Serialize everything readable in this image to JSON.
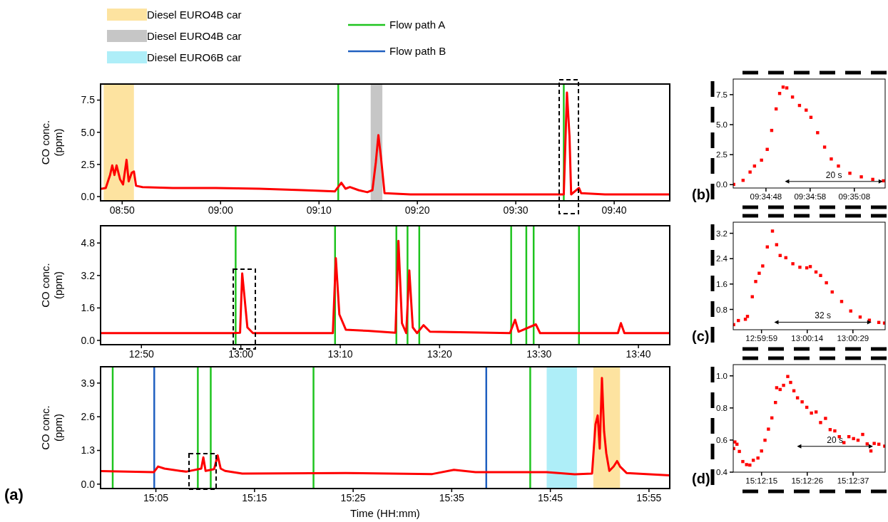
{
  "chart_data": [
    {
      "type": "line",
      "ylabel": "CO conc. (ppm)",
      "color": "#ff0000",
      "legend": "top",
      "x": [
        8.7967,
        8.8055,
        8.8128,
        8.8165,
        8.8202,
        8.8238,
        8.8297,
        8.8348,
        8.8407,
        8.8443,
        8.8495,
        8.8532,
        8.8568,
        8.8678,
        8.919,
        8.9922,
        9.0653,
        9.1385,
        9.1935,
        9.2045,
        9.2117,
        9.219,
        9.2337,
        9.2485,
        9.2572,
        9.263,
        9.2673,
        9.2717,
        9.2777,
        9.3217,
        9.4313,
        9.5703,
        9.5813,
        9.5867,
        9.591,
        9.5938,
        9.607,
        9.6107,
        9.651,
        9.7608
      ],
      "values": [
        0.6,
        0.67,
        1.68,
        2.42,
        1.68,
        2.42,
        1.35,
        0.94,
        2.86,
        1.18,
        1.85,
        1.95,
        0.84,
        0.74,
        0.67,
        0.67,
        0.61,
        0.5,
        0.4,
        1.08,
        0.61,
        0.74,
        0.5,
        0.34,
        0.5,
        2.69,
        4.78,
        3.03,
        0.27,
        0.17,
        0.17,
        0.17,
        0.17,
        8.08,
        4.71,
        0.17,
        0.67,
        0.27,
        0.17,
        0.17
      ],
      "xlim": [
        8.7967,
        9.7608
      ],
      "xticks": [
        {
          "value": 8.8333,
          "label": "08:50"
        },
        {
          "value": 9.0,
          "label": "09:00"
        },
        {
          "value": 9.1667,
          "label": "09:10"
        },
        {
          "value": 9.3333,
          "label": "09:20"
        },
        {
          "value": 9.5,
          "label": "09:30"
        },
        {
          "value": 9.6667,
          "label": "09:40"
        }
      ],
      "ylim": [
        -0.33,
        8.75
      ],
      "yticks": [
        {
          "value": 0,
          "label": "0.0"
        },
        2.5,
        {
          "value": 5,
          "label": "5.0"
        },
        7.5
      ],
      "bands": [
        {
          "axis": "x",
          "from": 8.802,
          "to": 8.8532,
          "label": "Diesel EURO4B car",
          "color": "#fbc741"
        },
        {
          "axis": "x",
          "from": 9.2542,
          "to": 9.274,
          "label": "Diesel EURO4B car",
          "color": "#8d8d8d"
        }
      ],
      "ref_lines": [
        {
          "axis": "x",
          "value": 9.1993,
          "label": "Flow path A",
          "color": "#1fc41f"
        },
        {
          "axis": "x",
          "value": 9.5813,
          "color": "#1fc41f"
        }
      ]
    },
    {
      "type": "line",
      "ylabel": "CO conc. (ppm)",
      "color": "#ff0000",
      "x": [
        12.7648,
        12.8863,
        12.9878,
        12.9987,
        13.0023,
        13.0058,
        13.011,
        13.0203,
        13.1543,
        13.1593,
        13.1652,
        13.176,
        13.2123,
        13.2593,
        13.2643,
        13.2702,
        13.2773,
        13.2825,
        13.2883,
        13.2955,
        13.3063,
        13.3172,
        13.4513,
        13.4598,
        13.4657,
        13.4947,
        13.5018,
        13.6323,
        13.6373,
        13.6432,
        13.7192
      ],
      "values": [
        0.36,
        0.36,
        0.36,
        0.38,
        3.3,
        2.24,
        0.64,
        0.36,
        0.36,
        4.05,
        1.28,
        0.53,
        0.47,
        0.38,
        4.9,
        0.85,
        0.36,
        3.45,
        0.64,
        0.36,
        0.75,
        0.43,
        0.36,
        1.02,
        0.43,
        0.79,
        0.36,
        0.36,
        0.85,
        0.36,
        0.36
      ],
      "xlim": [
        12.7648,
        13.7192
      ],
      "xticks": [
        {
          "value": 12.8333,
          "label": "12:50"
        },
        {
          "value": 13.0,
          "label": "13:00"
        },
        {
          "value": 13.1667,
          "label": "13:10"
        },
        {
          "value": 13.3333,
          "label": "13:20"
        },
        {
          "value": 13.5,
          "label": "13:30"
        },
        {
          "value": 13.6667,
          "label": "13:40"
        }
      ],
      "ylim": [
        -0.21,
        5.65
      ],
      "yticks": [
        {
          "value": 0,
          "label": "0.0"
        },
        1.6,
        3.2,
        4.8
      ],
      "ref_lines": [
        {
          "axis": "x",
          "value": 12.9913,
          "color": "#1fc41f"
        },
        {
          "axis": "x",
          "value": 13.158,
          "color": "#1fc41f"
        },
        {
          "axis": "x",
          "value": 13.2608,
          "color": "#1fc41f"
        },
        {
          "axis": "x",
          "value": 13.2795,
          "color": "#1fc41f"
        },
        {
          "axis": "x",
          "value": 13.2992,
          "color": "#1fc41f"
        },
        {
          "axis": "x",
          "value": 13.4533,
          "color": "#1fc41f"
        },
        {
          "axis": "x",
          "value": 13.4787,
          "color": "#1fc41f"
        },
        {
          "axis": "x",
          "value": 13.491,
          "color": "#1fc41f"
        },
        {
          "axis": "x",
          "value": 13.567,
          "color": "#1fc41f"
        }
      ]
    },
    {
      "type": "line",
      "ylabel": "CO conc. (ppm)",
      "xlabel": "Time (HH:mm)",
      "color": "#ff0000",
      "legend": "top",
      "annotations": [
        "(a)"
      ],
      "x": [
        14.9898,
        15.0797,
        15.087,
        15.0978,
        15.1343,
        15.16,
        15.1635,
        15.1673,
        15.1818,
        15.1877,
        15.1928,
        15.2002,
        15.2293,
        15.4043,
        15.5505,
        15.587,
        15.6235,
        15.7438,
        15.7913,
        15.8205,
        15.8263,
        15.83,
        15.8335,
        15.8372,
        15.8408,
        15.8445,
        15.8497,
        15.857,
        15.8628,
        15.8678,
        15.8788,
        15.9518
      ],
      "values": [
        0.5,
        0.46,
        0.68,
        0.6,
        0.48,
        0.6,
        1.03,
        0.51,
        0.58,
        1.11,
        0.6,
        0.51,
        0.41,
        0.43,
        0.39,
        0.55,
        0.46,
        0.46,
        0.38,
        0.41,
        2.31,
        2.65,
        1.37,
        4.1,
        2.05,
        1.2,
        0.51,
        0.68,
        0.89,
        0.68,
        0.43,
        0.34
      ],
      "xlim": [
        14.9898,
        15.9518
      ],
      "xticks": [
        {
          "value": 15.0833,
          "label": "15:05"
        },
        {
          "value": 15.25,
          "label": "15:15"
        },
        {
          "value": 15.4167,
          "label": "15:25"
        },
        {
          "value": 15.5833,
          "label": "15:35"
        },
        {
          "value": 15.75,
          "label": "15:45"
        },
        {
          "value": 15.9167,
          "label": "15:55"
        }
      ],
      "ylim": [
        -0.17,
        4.53
      ],
      "yticks": [
        {
          "value": 0,
          "label": "0.0"
        },
        1.3,
        2.6,
        3.9
      ],
      "bands": [
        {
          "axis": "x",
          "from": 15.7438,
          "to": 15.795,
          "label": "Diesel EURO6B car",
          "color": "#5dddf1"
        },
        {
          "axis": "x",
          "from": 15.8227,
          "to": 15.8678,
          "color": "#fbc741"
        }
      ],
      "ref_lines": [
        {
          "axis": "x",
          "value": 15.0103,
          "color": "#1fc41f"
        },
        {
          "axis": "x",
          "value": 15.1542,
          "color": "#1fc41f"
        },
        {
          "axis": "x",
          "value": 15.176,
          "color": "#1fc41f"
        },
        {
          "axis": "x",
          "value": 15.3497,
          "color": "#1fc41f"
        },
        {
          "axis": "x",
          "value": 15.716,
          "color": "#1fc41f"
        },
        {
          "axis": "x",
          "value": 15.0805,
          "label": "Flow path B",
          "color": "#2060c0"
        },
        {
          "axis": "x",
          "value": 15.6417,
          "color": "#2060c0"
        }
      ]
    },
    {
      "type": "scatter",
      "color": "#ff0000",
      "marker": "square",
      "annotations": [
        "(b)",
        "20 s"
      ],
      "x": [
        9.57797,
        9.57856,
        9.579,
        9.57928,
        9.57972,
        9.58008,
        9.58036,
        9.58064,
        9.58086,
        9.58108,
        9.58131,
        9.58167,
        9.58211,
        9.58253,
        9.58283,
        9.58325,
        9.58369,
        9.58411,
        9.58456,
        9.58528,
        9.586,
        9.58672,
        9.58739
      ],
      "values": [
        0.02,
        0.36,
        1.05,
        1.55,
        2.04,
        2.94,
        4.52,
        6.31,
        7.6,
        8.13,
        8.06,
        7.3,
        6.6,
        6.21,
        5.61,
        4.33,
        3.13,
        2.14,
        1.55,
        0.95,
        0.65,
        0.44,
        0.32
      ],
      "xlim": [
        9.57794,
        9.5875
      ],
      "xticks": [
        {
          "value": 9.58,
          "label": "09:34:48"
        },
        {
          "value": 9.58278,
          "label": "09:34:58"
        },
        {
          "value": 9.58556,
          "label": "09:35:08"
        }
      ],
      "ylim": [
        -0.28,
        8.8
      ],
      "yticks": [
        {
          "value": 0,
          "label": "0.0"
        },
        2.5,
        {
          "value": 5,
          "label": "5.0"
        },
        7.5
      ]
    },
    {
      "type": "scatter",
      "color": "#ff0000",
      "marker": "square",
      "annotations": [
        "(c)",
        "32 s"
      ],
      "x": [
        12.99718,
        12.99761,
        12.99825,
        12.99844,
        12.99888,
        12.99919,
        12.99951,
        12.99983,
        13.00025,
        13.00072,
        13.0011,
        13.00142,
        13.00194,
        13.00258,
        13.00322,
        13.00385,
        13.00417,
        13.00469,
        13.00511,
        13.00564,
        13.00617,
        13.00703,
        13.00786,
        13.00872,
        13.00956,
        13.01042,
        13.01094
      ],
      "values": [
        0.32,
        0.45,
        0.49,
        0.58,
        1.2,
        1.68,
        1.94,
        2.17,
        2.77,
        3.27,
        2.84,
        2.5,
        2.43,
        2.24,
        2.13,
        2.11,
        2.15,
        1.98,
        1.87,
        1.64,
        1.35,
        1.05,
        0.75,
        0.56,
        0.46,
        0.39,
        0.37
      ],
      "xlim": [
        12.99714,
        13.011
      ],
      "xticks": [
        {
          "value": 12.99972,
          "label": "12:59:59"
        },
        {
          "value": 13.00389,
          "label": "13:00:14"
        },
        {
          "value": 13.00806,
          "label": "13:00:29"
        }
      ],
      "ylim": [
        0.16,
        3.55
      ],
      "yticks": [
        0.8,
        1.6,
        2.4,
        3.2
      ]
    },
    {
      "type": "scatter",
      "color": "#ff0000",
      "marker": "square",
      "annotations": [
        "(d)",
        "20 s"
      ],
      "x": [
        15.20231,
        15.20239,
        15.20253,
        15.20269,
        15.20292,
        15.20317,
        15.20339,
        15.20362,
        15.20393,
        15.20417,
        15.2044,
        15.20463,
        15.20486,
        15.2051,
        15.20518,
        15.20541,
        15.20564,
        15.20592,
        15.20611,
        15.20633,
        15.20657,
        15.20688,
        15.20719,
        15.2075,
        15.20781,
        15.20811,
        15.20844,
        15.20875,
        15.20906,
        15.20936,
        15.20967,
        15.21,
        15.21031,
        15.21061,
        15.21092,
        15.21122,
        15.21147,
        15.21169,
        15.212,
        15.21239
      ],
      "values": [
        0.547,
        0.588,
        0.574,
        0.529,
        0.466,
        0.447,
        0.444,
        0.474,
        0.488,
        0.532,
        0.599,
        0.668,
        0.738,
        0.834,
        0.926,
        0.915,
        0.941,
        0.996,
        0.959,
        0.907,
        0.863,
        0.838,
        0.804,
        0.768,
        0.775,
        0.709,
        0.735,
        0.665,
        0.657,
        0.621,
        0.584,
        0.621,
        0.609,
        0.599,
        0.635,
        0.576,
        0.532,
        0.579,
        0.574,
        0.562
      ],
      "xlim": [
        15.20228,
        15.21242
      ],
      "xticks": [
        {
          "value": 15.20417,
          "label": "15:12:15"
        },
        {
          "value": 15.20722,
          "label": "15:12:26"
        },
        {
          "value": 15.21028,
          "label": "15:12:37"
        }
      ],
      "ylim": [
        0.4,
        1.07
      ],
      "yticks": [
        {
          "value": 0.4,
          "label": "0.4"
        },
        0.6,
        0.8,
        {
          "value": 1.0,
          "label": "1.0"
        }
      ]
    }
  ]
}
